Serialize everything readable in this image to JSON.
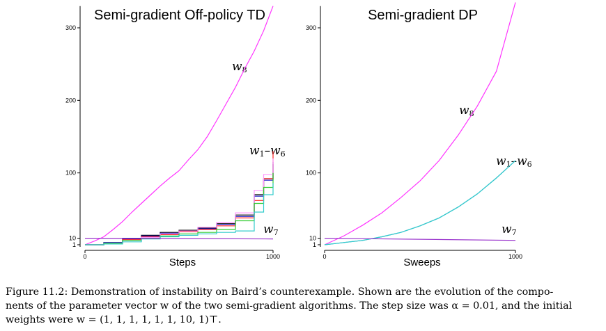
{
  "chart_data": [
    {
      "type": "line",
      "title": "Semi-gradient Off-policy TD",
      "xlabel": "Steps",
      "ylabel": "",
      "xlim": [
        0,
        1000
      ],
      "ylim": [
        0,
        300
      ],
      "x_ticks": [
        "0",
        "1000"
      ],
      "y_ticks": [
        "1",
        "10",
        "100",
        "200",
        "300"
      ],
      "annotations": [
        "w8",
        "w1–w6",
        "w7"
      ],
      "series": [
        {
          "color": "#ff33ff",
          "x": [
            0,
            50,
            100,
            150,
            200,
            250,
            300,
            350,
            400,
            450,
            500,
            550,
            600,
            650,
            700,
            750,
            800,
            850,
            900,
            950,
            1000
          ],
          "values": [
            1,
            6,
            12,
            22,
            33,
            46,
            58,
            70,
            82,
            93,
            103,
            118,
            132,
            150,
            172,
            195,
            218,
            244,
            268,
            296,
            330
          ]
        },
        {
          "color": "#000000",
          "x": [
            0,
            100,
            200,
            300,
            400,
            500,
            600,
            700,
            800,
            900,
            950,
            1000
          ],
          "values": [
            1,
            4,
            10,
            14,
            18,
            21,
            24,
            30,
            42,
            70,
            92,
            112
          ]
        },
        {
          "color": "#2222cc",
          "x": [
            0,
            100,
            200,
            300,
            400,
            500,
            600,
            700,
            800,
            900,
            950,
            1000
          ],
          "values": [
            1,
            4,
            9,
            13,
            17,
            20,
            23,
            29,
            40,
            68,
            90,
            115
          ]
        },
        {
          "color": "#ff2222",
          "x": [
            0,
            100,
            200,
            300,
            400,
            500,
            600,
            700,
            800,
            900,
            950,
            1000
          ],
          "values": [
            1,
            3,
            8,
            12,
            15,
            19,
            22,
            27,
            38,
            62,
            92,
            130
          ]
        },
        {
          "color": "#ff99ff",
          "x": [
            0,
            100,
            200,
            300,
            400,
            500,
            600,
            700,
            800,
            900,
            950,
            1000
          ],
          "values": [
            1,
            3,
            7,
            11,
            16,
            20,
            25,
            32,
            45,
            76,
            98,
            120
          ]
        },
        {
          "color": "#33cc33",
          "x": [
            0,
            100,
            200,
            300,
            400,
            500,
            600,
            700,
            800,
            900,
            950,
            1000
          ],
          "values": [
            1,
            3,
            7,
            10,
            13,
            16,
            18,
            22,
            34,
            58,
            80,
            100
          ]
        },
        {
          "color": "#33cccc",
          "x": [
            0,
            100,
            200,
            300,
            400,
            500,
            600,
            700,
            800,
            900,
            950,
            1000
          ],
          "values": [
            1,
            2,
            5,
            9,
            12,
            14,
            16,
            18,
            20,
            46,
            70,
            86
          ]
        },
        {
          "color": "#9933cc",
          "x": [
            0,
            1000
          ],
          "values": [
            10,
            9
          ]
        }
      ]
    },
    {
      "type": "line",
      "title": "Semi-gradient DP",
      "xlabel": "Sweeps",
      "ylabel": "",
      "xlim": [
        0,
        1000
      ],
      "ylim": [
        0,
        300
      ],
      "x_ticks": [
        "0",
        "1000"
      ],
      "y_ticks": [
        "1",
        "10",
        "100",
        "200",
        "300"
      ],
      "annotations": [
        "w8",
        "w1–w6",
        "w7"
      ],
      "series": [
        {
          "color": "#ff33ff",
          "x": [
            0,
            100,
            200,
            300,
            400,
            500,
            600,
            700,
            800,
            900,
            1000
          ],
          "values": [
            1,
            13,
            28,
            45,
            66,
            89,
            117,
            152,
            192,
            240,
            335
          ]
        },
        {
          "color": "#3399cc",
          "x": [
            0,
            100,
            200,
            300,
            400,
            500,
            600,
            700,
            800,
            900,
            1000
          ],
          "values": [
            1,
            4,
            7,
            12,
            18,
            27,
            38,
            53,
            71,
            93,
            117
          ]
        },
        {
          "color": "#33cccc",
          "x": [
            0,
            100,
            200,
            300,
            400,
            500,
            600,
            700,
            800,
            900,
            1000
          ],
          "values": [
            1,
            4,
            7,
            12,
            18,
            27,
            38,
            53,
            71,
            93,
            117
          ]
        },
        {
          "color": "#9933cc",
          "x": [
            0,
            1000
          ],
          "values": [
            10,
            7
          ]
        }
      ]
    }
  ],
  "caption": {
    "line1": "Figure 11.2: Demonstration of instability on Baird’s counterexample. Shown are the evolution of the compo-",
    "line2": "nents of the parameter vector w of the two semi-gradient algorithms. The step size was α = 0.01, and the initial",
    "line3": "weights were w = (1, 1, 1, 1, 1, 1, 10, 1)⊤."
  }
}
